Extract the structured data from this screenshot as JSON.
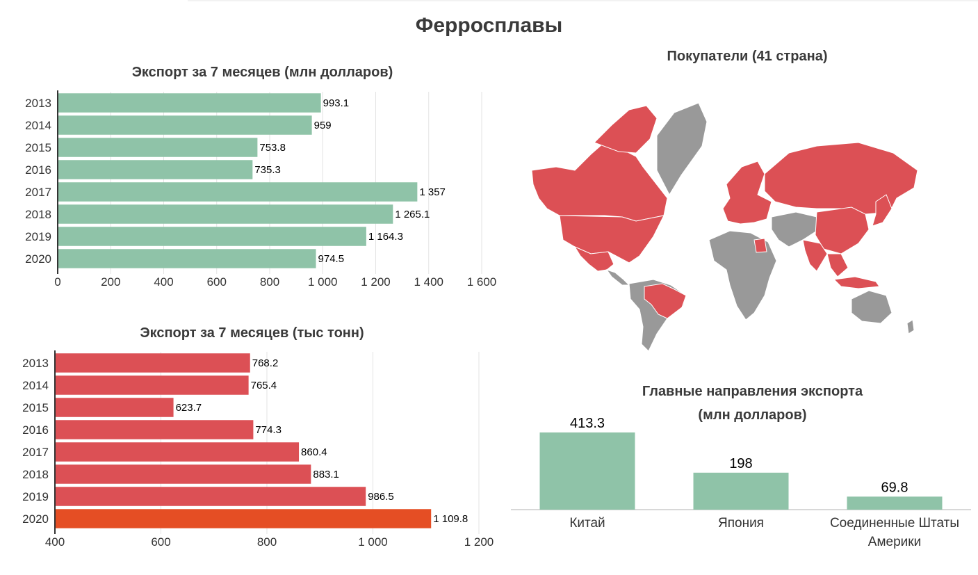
{
  "page": {
    "title": "Ферросплавы"
  },
  "colors": {
    "green": "#8fc3a8",
    "red": "#dc5055",
    "highlight": "#e54e24",
    "gray": "#999999",
    "grid": "#e3e3e3",
    "text": "#333333"
  },
  "chart_data": [
    {
      "id": "usd",
      "type": "bar",
      "orientation": "horizontal",
      "title": "Экспорт за 7 месяцев (млн долларов)",
      "categories": [
        "2013",
        "2014",
        "2015",
        "2016",
        "2017",
        "2018",
        "2019",
        "2020"
      ],
      "values": [
        993.1,
        959,
        753.8,
        735.3,
        1357,
        1265.1,
        1164.3,
        974.5
      ],
      "value_labels": [
        "993.1",
        "959",
        "753.8",
        "735.3",
        "1 357",
        "1 265.1",
        "1 164.3",
        "974.5"
      ],
      "xlim": [
        0,
        1600
      ],
      "ticks": [
        0,
        200,
        400,
        600,
        800,
        1000,
        1200,
        1400,
        1600
      ],
      "tick_labels": [
        "0",
        "200",
        "400",
        "600",
        "800",
        "1 000",
        "1 200",
        "1 400",
        "1 600"
      ],
      "grid": true,
      "bar_color": "#8fc3a8"
    },
    {
      "id": "tons",
      "type": "bar",
      "orientation": "horizontal",
      "title": "Экспорт за 7 месяцев (тыс тонн)",
      "categories": [
        "2013",
        "2014",
        "2015",
        "2016",
        "2017",
        "2018",
        "2019",
        "2020"
      ],
      "values": [
        768.2,
        765.4,
        623.7,
        774.3,
        860.4,
        883.1,
        986.5,
        1109.8
      ],
      "value_labels": [
        "768.2",
        "765.4",
        "623.7",
        "774.3",
        "860.4",
        "883.1",
        "986.5",
        "1 109.8"
      ],
      "xlim": [
        400,
        1200
      ],
      "ticks": [
        400,
        600,
        800,
        1000,
        1200
      ],
      "tick_labels": [
        "400",
        "600",
        "800",
        "1 000",
        "1 200"
      ],
      "grid": true,
      "bar_color": "#dc5055",
      "highlight_category": "2020",
      "highlight_color": "#e54e24"
    },
    {
      "id": "dest",
      "type": "bar",
      "orientation": "vertical",
      "title_lines": [
        "Главные направления экспорта",
        "(млн долларов)"
      ],
      "categories": [
        "Китай",
        "Япония",
        "Соединенные Штаты Америки"
      ],
      "category_lines": [
        [
          "Китай"
        ],
        [
          "Япония"
        ],
        [
          "Соединенные Штаты",
          "Америки"
        ]
      ],
      "values": [
        413.3,
        198,
        69.8
      ],
      "value_labels": [
        "413.3",
        "198",
        "69.8"
      ],
      "ylim": [
        0,
        413.3
      ],
      "bar_color": "#8fc3a8"
    }
  ],
  "map": {
    "title": "Покупатели (41 страна)",
    "buyer_color": "#dc5055",
    "other_color": "#999999"
  }
}
